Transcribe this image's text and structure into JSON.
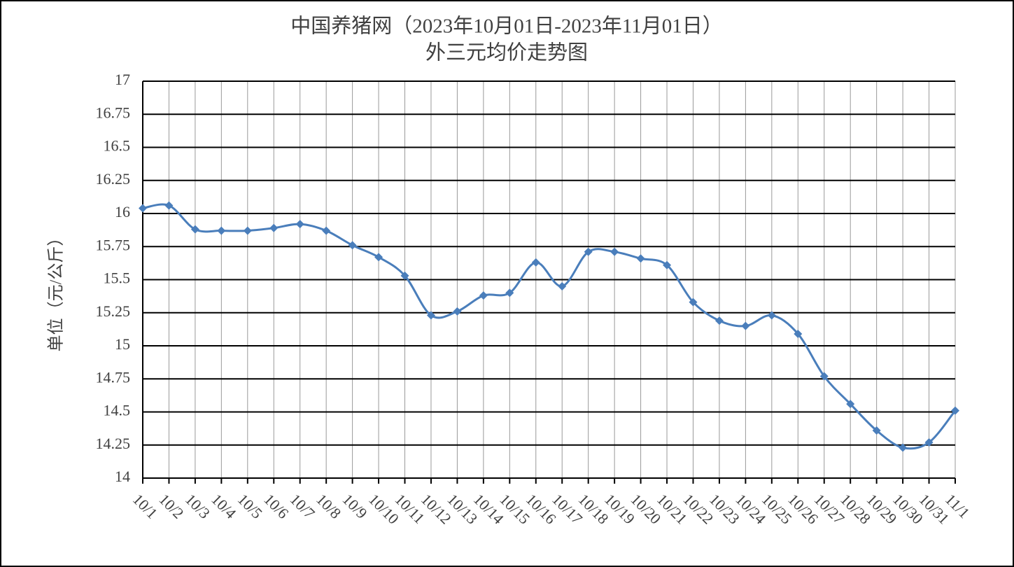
{
  "chart_data": {
    "type": "line",
    "title": "中国养猪网（2023年10月01日-2023年11月01日）",
    "subtitle": "外三元均价走势图",
    "y_label": "单位（元/公斤）",
    "categories": [
      "10/1",
      "10/2",
      "10/3",
      "10/4",
      "10/5",
      "10/6",
      "10/7",
      "10/8",
      "10/9",
      "10/10",
      "10/11",
      "10/12",
      "10/13",
      "10/14",
      "10/15",
      "10/16",
      "10/17",
      "10/18",
      "10/19",
      "10/20",
      "10/21",
      "10/22",
      "10/23",
      "10/24",
      "10/25",
      "10/26",
      "10/27",
      "10/28",
      "10/29",
      "10/30",
      "10/31",
      "11/1"
    ],
    "values": [
      16.04,
      16.06,
      15.88,
      15.87,
      15.87,
      15.89,
      15.92,
      15.87,
      15.76,
      15.67,
      15.53,
      15.23,
      15.26,
      15.38,
      15.4,
      15.63,
      15.45,
      15.71,
      15.71,
      15.66,
      15.61,
      15.33,
      15.19,
      15.15,
      15.23,
      15.09,
      14.77,
      14.56,
      14.36,
      14.23,
      14.27,
      14.51
    ],
    "color": "#4a7ebb",
    "ylim": [
      14,
      17
    ],
    "yticks": [
      14,
      14.25,
      14.5,
      14.75,
      15,
      15.25,
      15.5,
      15.75,
      16,
      16.25,
      16.5,
      16.75,
      17
    ],
    "grid": true,
    "smooth": true
  }
}
